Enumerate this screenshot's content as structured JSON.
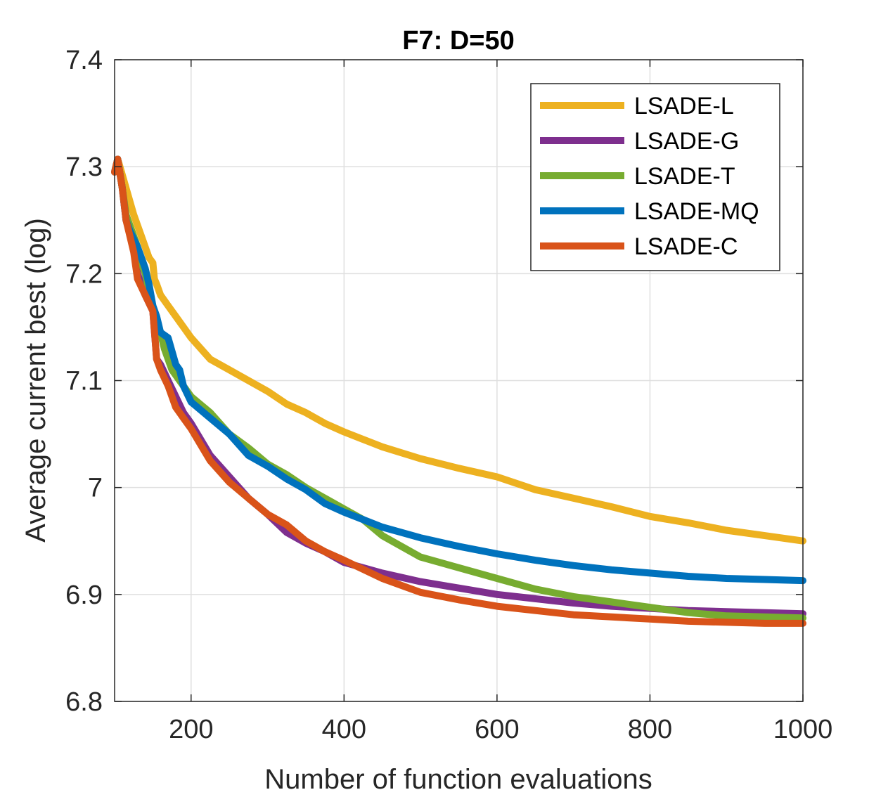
{
  "chart_data": {
    "type": "line",
    "title": "F7: D=50",
    "xlabel": "Number of function evaluations",
    "ylabel": "Average current best (log)",
    "xlim": [
      100,
      1000
    ],
    "ylim": [
      6.8,
      7.4
    ],
    "xticks": [
      200,
      400,
      600,
      800,
      1000
    ],
    "xtick_labels": [
      "200",
      "400",
      "600",
      "800",
      "1000"
    ],
    "yticks": [
      6.8,
      6.9,
      7.0,
      7.1,
      7.2,
      7.3,
      7.4
    ],
    "ytick_labels": [
      "6.8",
      "6.9",
      "7",
      "7.1",
      "7.2",
      "7.3",
      "7.4"
    ],
    "grid": true,
    "legend_position": "top-right",
    "series": [
      {
        "name": "LSADE-L",
        "color": "#EDB120",
        "x": [
          100,
          105,
          115,
          125,
          135,
          145,
          150,
          152,
          155,
          160,
          170,
          185,
          200,
          225,
          250,
          275,
          300,
          325,
          350,
          375,
          400,
          450,
          500,
          550,
          600,
          650,
          700,
          750,
          800,
          850,
          900,
          950,
          1000
        ],
        "y": [
          7.295,
          7.305,
          7.28,
          7.255,
          7.235,
          7.215,
          7.21,
          7.195,
          7.19,
          7.18,
          7.17,
          7.155,
          7.14,
          7.12,
          7.11,
          7.1,
          7.09,
          7.078,
          7.07,
          7.06,
          7.052,
          7.038,
          7.027,
          7.018,
          7.01,
          6.998,
          6.99,
          6.982,
          6.973,
          6.967,
          6.96,
          6.955,
          6.95
        ]
      },
      {
        "name": "LSADE-G",
        "color": "#7E2F8E",
        "x": [
          100,
          104,
          110,
          115,
          120,
          125,
          130,
          140,
          150,
          155,
          160,
          170,
          180,
          190,
          200,
          225,
          250,
          275,
          300,
          325,
          350,
          375,
          400,
          450,
          500,
          550,
          600,
          650,
          700,
          750,
          800,
          850,
          900,
          950,
          1000
        ],
        "y": [
          7.295,
          7.307,
          7.28,
          7.25,
          7.24,
          7.225,
          7.2,
          7.18,
          7.165,
          7.12,
          7.115,
          7.1,
          7.085,
          7.07,
          7.06,
          7.03,
          7.01,
          6.99,
          6.975,
          6.958,
          6.948,
          6.94,
          6.93,
          6.92,
          6.912,
          6.906,
          6.9,
          6.896,
          6.892,
          6.889,
          6.887,
          6.885,
          6.884,
          6.883,
          6.882
        ]
      },
      {
        "name": "LSADE-T",
        "color": "#77AC30",
        "x": [
          100,
          104,
          110,
          115,
          120,
          125,
          130,
          135,
          140,
          145,
          150,
          160,
          165,
          175,
          190,
          200,
          225,
          250,
          275,
          300,
          325,
          350,
          375,
          400,
          425,
          450,
          475,
          500,
          550,
          600,
          650,
          700,
          750,
          800,
          850,
          900,
          950,
          1000
        ],
        "y": [
          7.295,
          7.307,
          7.28,
          7.255,
          7.245,
          7.235,
          7.225,
          7.21,
          7.2,
          7.185,
          7.17,
          7.145,
          7.13,
          7.11,
          7.095,
          7.085,
          7.07,
          7.05,
          7.037,
          7.022,
          7.012,
          7.0,
          6.99,
          6.98,
          6.97,
          6.955,
          6.945,
          6.935,
          6.925,
          6.915,
          6.905,
          6.898,
          6.893,
          6.888,
          6.883,
          6.88,
          6.879,
          6.878
        ]
      },
      {
        "name": "LSADE-MQ",
        "color": "#0072BD",
        "x": [
          100,
          104,
          110,
          115,
          120,
          130,
          140,
          145,
          150,
          155,
          160,
          170,
          180,
          185,
          190,
          200,
          225,
          250,
          275,
          300,
          325,
          350,
          375,
          400,
          425,
          450,
          475,
          500,
          550,
          600,
          650,
          700,
          750,
          800,
          850,
          900,
          950,
          1000
        ],
        "y": [
          7.295,
          7.307,
          7.28,
          7.25,
          7.24,
          7.225,
          7.205,
          7.19,
          7.17,
          7.16,
          7.145,
          7.14,
          7.115,
          7.11,
          7.095,
          7.08,
          7.065,
          7.05,
          7.03,
          7.02,
          7.008,
          6.998,
          6.985,
          6.977,
          6.97,
          6.963,
          6.958,
          6.953,
          6.945,
          6.938,
          6.932,
          6.927,
          6.923,
          6.92,
          6.917,
          6.915,
          6.914,
          6.913
        ]
      },
      {
        "name": "LSADE-C",
        "color": "#D95319",
        "x": [
          100,
          104,
          110,
          115,
          120,
          125,
          130,
          140,
          150,
          155,
          160,
          170,
          180,
          190,
          200,
          225,
          250,
          275,
          300,
          325,
          350,
          375,
          400,
          450,
          500,
          550,
          600,
          650,
          700,
          750,
          800,
          850,
          900,
          950,
          1000
        ],
        "y": [
          7.295,
          7.307,
          7.28,
          7.25,
          7.235,
          7.22,
          7.195,
          7.18,
          7.165,
          7.12,
          7.11,
          7.095,
          7.075,
          7.065,
          7.055,
          7.025,
          7.005,
          6.99,
          6.975,
          6.965,
          6.95,
          6.94,
          6.932,
          6.915,
          6.902,
          6.895,
          6.889,
          6.885,
          6.881,
          6.879,
          6.877,
          6.875,
          6.874,
          6.873,
          6.873
        ]
      }
    ]
  }
}
